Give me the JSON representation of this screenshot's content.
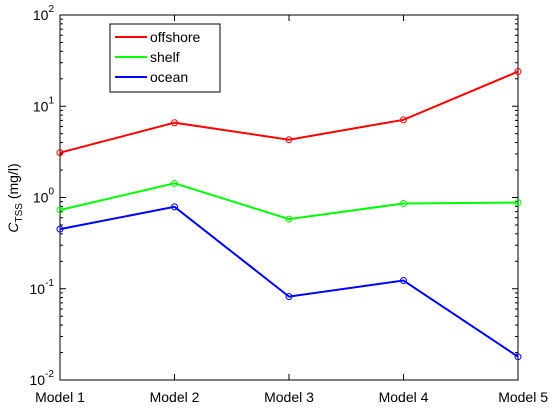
{
  "chart_data": {
    "type": "line",
    "title": "",
    "xlabel": "",
    "ylabel": {
      "main": "C",
      "subscript": "TSS",
      "unit": " (mg/l)"
    },
    "yscale": "log",
    "ylim": [
      0.01,
      100
    ],
    "y_ticks": [
      {
        "value": 0.01,
        "base": "10",
        "exponent": "-2"
      },
      {
        "value": 0.1,
        "base": "10",
        "exponent": "-1"
      },
      {
        "value": 1,
        "base": "10",
        "exponent": "0"
      },
      {
        "value": 10,
        "base": "10",
        "exponent": "1"
      },
      {
        "value": 100,
        "base": "10",
        "exponent": "2"
      }
    ],
    "categories": [
      "Model 1",
      "Model 2",
      "Model 3",
      "Model 4",
      "Model 5"
    ],
    "series": [
      {
        "name": "offshore",
        "color": "#ff0000",
        "marker": "circle",
        "values": [
          3.1,
          6.6,
          4.3,
          7.1,
          24
        ]
      },
      {
        "name": "shelf",
        "color": "#00ff00",
        "marker": "circle",
        "values": [
          0.73,
          1.43,
          0.58,
          0.86,
          0.88
        ]
      },
      {
        "name": "ocean",
        "color": "#0000ff",
        "marker": "circle",
        "values": [
          0.45,
          0.79,
          0.082,
          0.123,
          0.018
        ]
      }
    ],
    "legend": {
      "placement": "top-left"
    },
    "grid": false
  }
}
